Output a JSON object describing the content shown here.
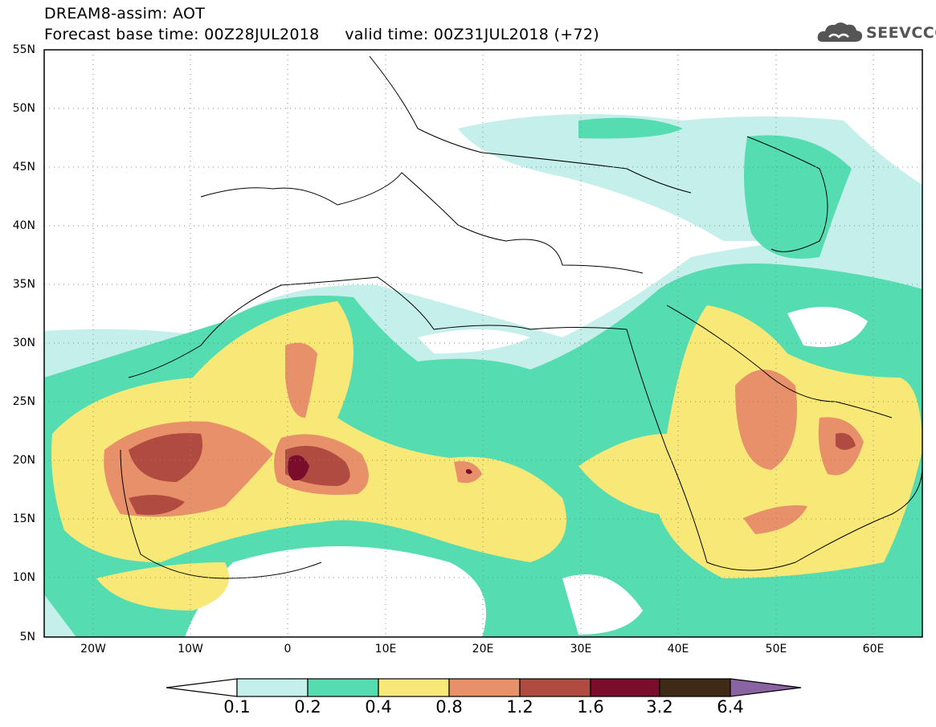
{
  "title": {
    "line1": "DREAM8-assim: AOT",
    "line2": "Forecast base time: 00Z28JUL2018     valid time: 00Z31JUL2018 (+72)"
  },
  "logo": {
    "text": "SEEVCCC",
    "icon": "cloud-icon"
  },
  "map": {
    "projection": "lat-lon",
    "lon_range": [
      -25,
      65
    ],
    "lat_range": [
      5,
      55
    ],
    "lat_ticks": [
      "5N",
      "10N",
      "15N",
      "20N",
      "25N",
      "30N",
      "35N",
      "40N",
      "45N",
      "50N",
      "55N"
    ],
    "lon_ticks": [
      "20W",
      "10W",
      "0",
      "10E",
      "20E",
      "30E",
      "40E",
      "50E",
      "60E"
    ],
    "gridlines": "dotted",
    "field": "Aerosol optical thickness",
    "colors": {
      "0.1-0.2": "#c4efea",
      "0.2-0.4": "#55dcb0",
      "0.4-0.8": "#f8e878",
      "0.8-1.2": "#e7906a",
      "1.2-1.6": "#b04b42",
      "1.6-3.2": "#7a0d2c",
      "3.2-6.4": "#3f2a18",
      ">6.4": "#8a63a3"
    }
  },
  "colorbar": {
    "levels": [
      "0.1",
      "0.2",
      "0.4",
      "0.8",
      "1.2",
      "1.6",
      "3.2",
      "6.4"
    ],
    "colors": [
      "#ffffff",
      "#c4efea",
      "#55dcb0",
      "#f8e878",
      "#e7906a",
      "#b04b42",
      "#7a0d2c",
      "#3f2a18",
      "#8a63a3"
    ]
  }
}
